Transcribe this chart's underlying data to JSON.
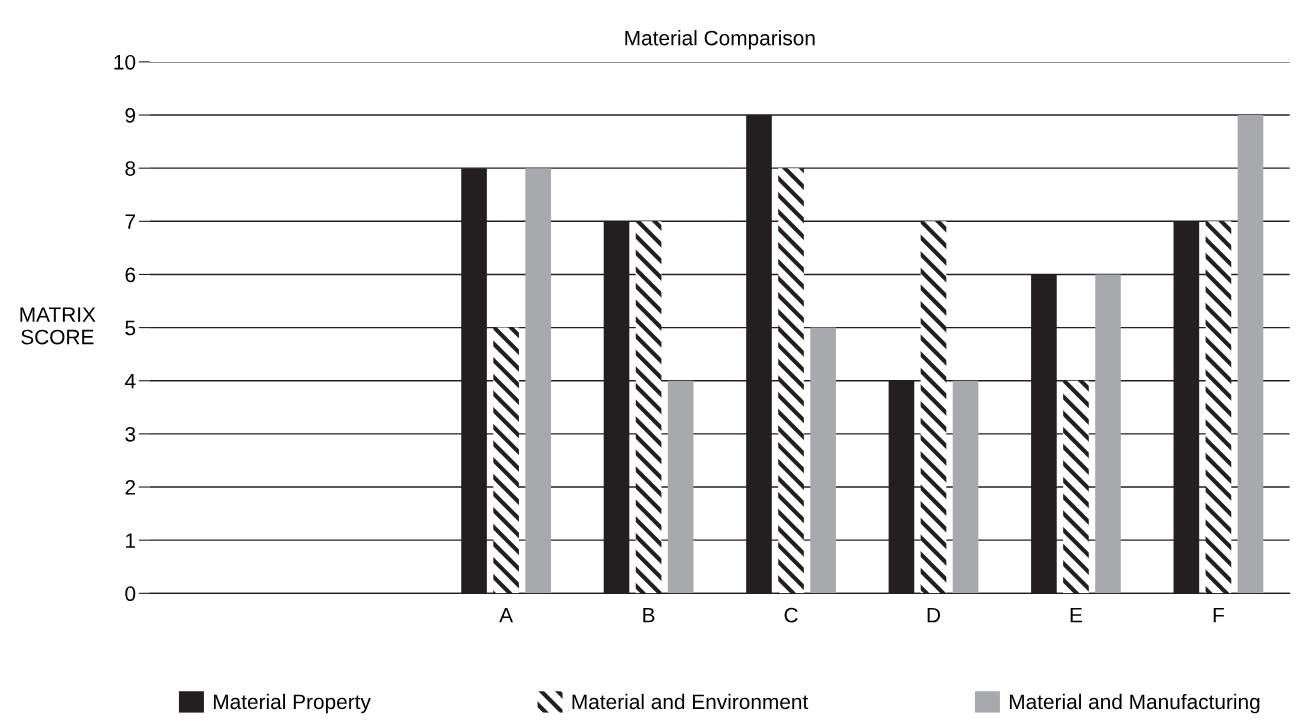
{
  "chart_data": {
    "type": "bar",
    "title": "Material Comparison",
    "ylabel": "MATRIX\nSCORE",
    "categories": [
      null,
      null,
      "A",
      "B",
      "C",
      "D",
      "E",
      "F"
    ],
    "series": [
      {
        "name": "Material Property",
        "color": "#231f20",
        "values": [
          null,
          null,
          8,
          7,
          9,
          4,
          6,
          7
        ]
      },
      {
        "name": "Material and Environment",
        "color": "#231f20",
        "values": [
          null,
          null,
          5,
          7,
          8,
          7,
          4,
          7
        ]
      },
      {
        "name": "Material and Manufacturing",
        "color": "#a7a9ac",
        "values": [
          null,
          null,
          8,
          4,
          5,
          4,
          6,
          9
        ]
      }
    ],
    "ylim": [
      0,
      10
    ],
    "yticks": [
      0,
      1,
      2,
      3,
      4,
      5,
      6,
      7,
      8,
      9,
      10
    ],
    "grid": "y",
    "legend": "bottom"
  }
}
